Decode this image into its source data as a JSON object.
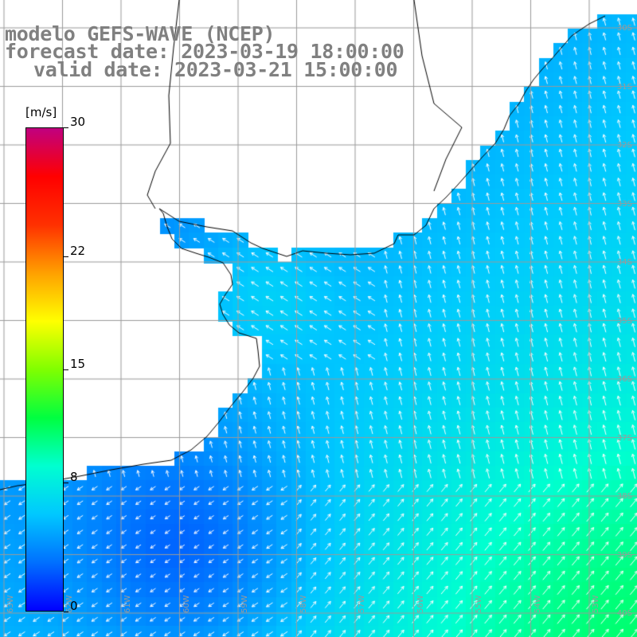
{
  "title": {
    "line1": "modelo GEFS-WAVE (NCEP)",
    "line2": "forecast date: 2023-03-19 18:00:00",
    "line3": "valid date: 2023-03-21 15:00:00"
  },
  "colorbar": {
    "unit": "[m/s]",
    "ticks": [
      {
        "value": 30,
        "label": "30"
      },
      {
        "value": 22,
        "label": "22"
      },
      {
        "value": 15,
        "label": "15"
      },
      {
        "value": 8,
        "label": "8"
      },
      {
        "value": 0,
        "label": "0"
      }
    ],
    "min": 0,
    "max": 30,
    "colors": [
      "#0000ff",
      "#0070ff",
      "#00c8ff",
      "#00ffd0",
      "#00ff40",
      "#80ff00",
      "#ffff00",
      "#ffa000",
      "#ff3000",
      "#ff0000",
      "#c00080"
    ]
  },
  "map": {
    "lat_labels": [
      "30S",
      "31S",
      "32S",
      "33S",
      "34S",
      "35S",
      "36S",
      "37S",
      "38S",
      "39S",
      "40S"
    ],
    "lon_labels": [
      "63W",
      "62W",
      "61W",
      "60W",
      "59W",
      "58W",
      "57W",
      "56W",
      "55W",
      "54W",
      "53W"
    ],
    "land_color": "#ffffff",
    "grid_color": "#9a9a9a"
  }
}
